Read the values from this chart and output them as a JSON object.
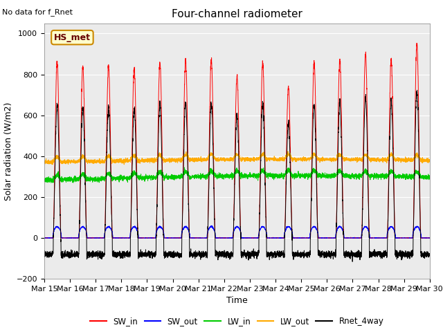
{
  "title": "Four-channel radiometer",
  "top_left_text": "No data for f_Rnet",
  "annotation_box": "HS_met",
  "xlabel": "Time",
  "ylabel": "Solar radiation (W/m2)",
  "ylim": [
    -200,
    1050
  ],
  "n_days": 15,
  "x_ticks": [
    "Mar 15",
    "Mar 16",
    "Mar 17",
    "Mar 18",
    "Mar 19",
    "Mar 20",
    "Mar 21",
    "Mar 22",
    "Mar 23",
    "Mar 24",
    "Mar 25",
    "Mar 26",
    "Mar 27",
    "Mar 28",
    "Mar 29",
    "Mar 30"
  ],
  "legend": [
    {
      "label": "SW_in",
      "color": "#ff0000"
    },
    {
      "label": "SW_out",
      "color": "#0000ff"
    },
    {
      "label": "LW_in",
      "color": "#00cc00"
    },
    {
      "label": "LW_out",
      "color": "#ffaa00"
    },
    {
      "label": "Rnet_4way",
      "color": "#000000"
    }
  ],
  "peaks_SW_in": [
    860,
    840,
    840,
    830,
    860,
    870,
    870,
    790,
    860,
    740,
    860,
    870,
    900,
    870,
    950
  ],
  "bg_color": "#ebebeb",
  "title_fontsize": 11,
  "label_fontsize": 9,
  "tick_fontsize": 8
}
